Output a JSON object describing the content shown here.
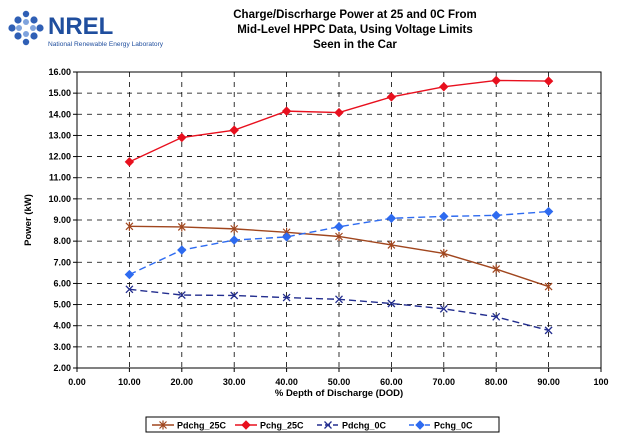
{
  "logo": {
    "name": "NREL",
    "tagline": "National Renewable Energy Laboratory",
    "icon": "nrel-diamond-icon",
    "color": "#1f4e9e"
  },
  "title_lines": [
    "Charge/Discrharge Power at 25 and 0C From",
    "Mid-Level HPPC Data, Using Voltage Limits",
    "Seen in the Car"
  ],
  "chart_data": {
    "type": "line",
    "xlabel": "% Depth of Discharge (DOD)",
    "ylabel": "Power (kW)",
    "xlim": [
      0,
      100
    ],
    "ylim": [
      2,
      16
    ],
    "x_ticks": [
      "0.00",
      "10.00",
      "20.00",
      "30.00",
      "40.00",
      "50.00",
      "60.00",
      "70.00",
      "80.00",
      "90.00",
      "100"
    ],
    "y_ticks": [
      "2.00",
      "3.00",
      "4.00",
      "5.00",
      "6.00",
      "7.00",
      "8.00",
      "9.00",
      "10.00",
      "11.00",
      "12.00",
      "13.00",
      "14.00",
      "15.00",
      "16.00"
    ],
    "grid": "dashed",
    "legend_position": "bottom",
    "x": [
      10,
      20,
      30,
      40,
      50,
      60,
      70,
      80,
      90
    ],
    "series": [
      {
        "name": "Pdchg_25C",
        "values": [
          8.7,
          8.67,
          8.58,
          8.42,
          8.22,
          7.82,
          7.42,
          6.68,
          5.85
        ],
        "color": "#a0461e",
        "line": "solid",
        "marker": "asterisk"
      },
      {
        "name": "Pchg_25C",
        "values": [
          11.75,
          12.9,
          13.25,
          14.15,
          14.08,
          14.82,
          15.3,
          15.6,
          15.57
        ],
        "color": "#e8101e",
        "line": "solid",
        "marker": "diamond"
      },
      {
        "name": "Pdchg_0C",
        "values": [
          5.72,
          5.45,
          5.43,
          5.33,
          5.25,
          5.05,
          4.8,
          4.42,
          3.78
        ],
        "color": "#232e8f",
        "line": "dashed",
        "marker": "x"
      },
      {
        "name": "Pchg_0C",
        "values": [
          6.42,
          7.58,
          8.05,
          8.2,
          8.68,
          9.08,
          9.17,
          9.22,
          9.4
        ],
        "color": "#2e6bf0",
        "line": "dashed",
        "marker": "diamond"
      }
    ]
  }
}
